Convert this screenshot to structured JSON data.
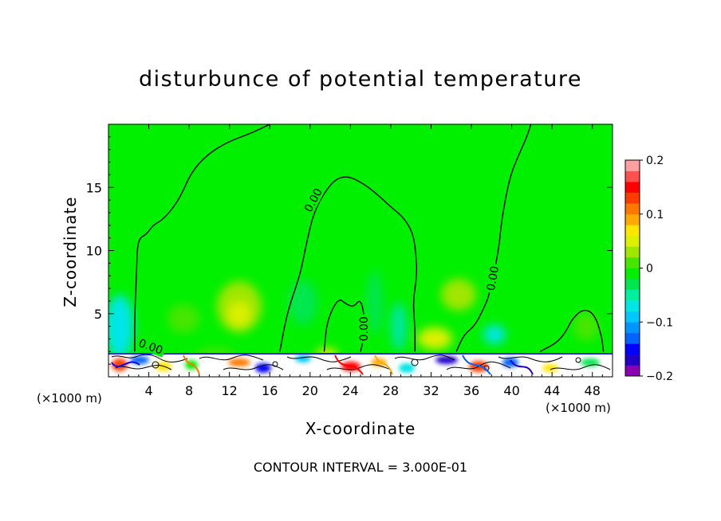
{
  "chart_data": {
    "type": "heatmap",
    "title": "disturbunce of potential temperature",
    "xlabel": "X-coordinate",
    "ylabel": "Z-coordinate",
    "x_unit_note": "(×1000 m)",
    "x_unit_note_right": "(×1000 m)",
    "contour_interval_text": "CONTOUR INTERVAL = 3.000E-01",
    "xlim": [
      0,
      50
    ],
    "ylim": [
      0,
      20
    ],
    "x_ticks": [
      4,
      8,
      12,
      16,
      20,
      24,
      28,
      32,
      36,
      40,
      44,
      48
    ],
    "y_ticks": [
      5,
      10,
      15
    ],
    "colorbar": {
      "range": [
        -0.2,
        0.2
      ],
      "tick_labels": [
        "0.2",
        "0.1",
        "0",
        "-0.1",
        "-0.2"
      ],
      "tick_values": [
        0.2,
        0.1,
        0,
        -0.1,
        -0.2
      ],
      "colors": [
        "#8c00b4",
        "#2300c8",
        "#0000ff",
        "#0064ff",
        "#0096ff",
        "#00c8ff",
        "#00e6e6",
        "#00f0a0",
        "#00e650",
        "#00f000",
        "#46e600",
        "#a0e600",
        "#dcf000",
        "#ffe600",
        "#ffaa00",
        "#ff7800",
        "#ff3c00",
        "#ff0000",
        "#ff5050",
        "#ffa0a0"
      ]
    },
    "background_value": 0.0,
    "zero_contour_label": "0.00",
    "zero_contours": [
      [
        [
          2.6,
          2.0
        ],
        [
          2.6,
          4.8
        ],
        [
          2.8,
          8.6
        ],
        [
          2.9,
          10.9
        ],
        [
          3.8,
          11.3
        ],
        [
          4.4,
          12.0
        ],
        [
          5.5,
          12.5
        ],
        [
          7.0,
          14.0
        ],
        [
          8.2,
          16.2
        ],
        [
          9.8,
          17.6
        ],
        [
          11.8,
          18.6
        ],
        [
          14.2,
          19.3
        ],
        [
          16.0,
          20.0
        ]
      ],
      [
        [
          17.0,
          2.0
        ],
        [
          17.7,
          5.0
        ],
        [
          18.8,
          7.6
        ],
        [
          19.2,
          8.8
        ],
        [
          19.7,
          10.8
        ],
        [
          20.4,
          13.1
        ],
        [
          21.6,
          14.8
        ],
        [
          22.6,
          15.7
        ],
        [
          23.8,
          15.9
        ],
        [
          25.3,
          15.3
        ],
        [
          26.6,
          14.5
        ],
        [
          27.8,
          13.6
        ],
        [
          29.3,
          12.6
        ],
        [
          30.2,
          11.4
        ],
        [
          30.5,
          9.8
        ],
        [
          30.6,
          8.0
        ],
        [
          30.2,
          6.0
        ],
        [
          30.4,
          4.0
        ],
        [
          30.4,
          2.0
        ]
      ],
      [
        [
          21.4,
          2.0
        ],
        [
          21.6,
          4.0
        ],
        [
          22.2,
          5.4
        ],
        [
          22.9,
          6.2
        ],
        [
          23.5,
          5.8
        ],
        [
          24.3,
          5.5
        ],
        [
          25.0,
          6.2
        ],
        [
          25.4,
          4.8
        ],
        [
          25.3,
          3.0
        ],
        [
          25.0,
          2.0
        ]
      ],
      [
        [
          34.5,
          2.0
        ],
        [
          35.3,
          3.4
        ],
        [
          36.3,
          4.0
        ],
        [
          37.1,
          5.2
        ],
        [
          37.8,
          6.5
        ],
        [
          38.7,
          10.0
        ],
        [
          39.0,
          12.5
        ],
        [
          39.8,
          15.8
        ],
        [
          40.6,
          17.4
        ],
        [
          41.5,
          19.0
        ],
        [
          41.9,
          20.0
        ]
      ],
      [
        [
          42.8,
          2.0
        ],
        [
          44.5,
          2.7
        ],
        [
          45.4,
          3.6
        ],
        [
          46.0,
          4.6
        ],
        [
          47.1,
          5.4
        ],
        [
          48.2,
          5.0
        ],
        [
          48.9,
          3.3
        ],
        [
          49.1,
          2.0
        ]
      ]
    ],
    "notes": "field near zero (green) above z=2; strong positive and negative anomalies confined to z<2 layer"
  }
}
